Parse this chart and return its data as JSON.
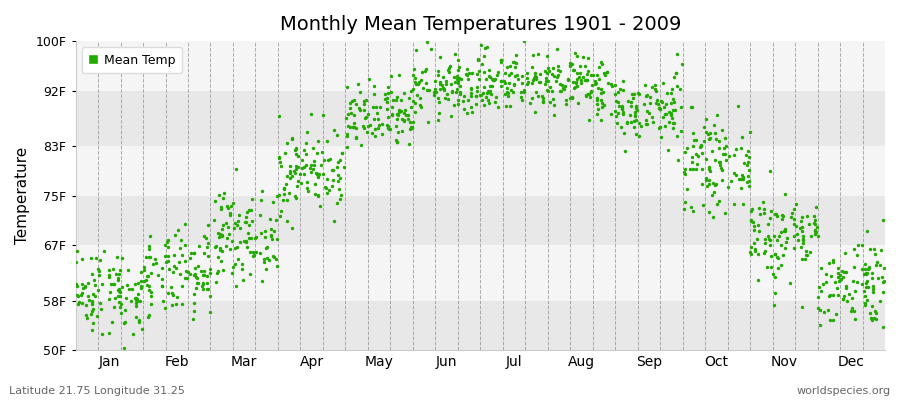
{
  "title": "Monthly Mean Temperatures 1901 - 2009",
  "ylabel": "Temperature",
  "subtitle_left": "Latitude 21.75 Longitude 31.25",
  "subtitle_right": "worldspecies.org",
  "legend_label": "Mean Temp",
  "dot_color": "#22aa00",
  "background_color": "#ffffff",
  "band_color_light": "#f5f5f5",
  "band_color_dark": "#e8e8e8",
  "yticks": [
    50,
    58,
    67,
    75,
    83,
    92,
    100
  ],
  "ytick_labels": [
    "50F",
    "58F",
    "67F",
    "75F",
    "83F",
    "92F",
    "100F"
  ],
  "ylim": [
    50,
    100
  ],
  "months": [
    "Jan",
    "Feb",
    "Mar",
    "Apr",
    "May",
    "Jun",
    "Jul",
    "Aug",
    "Sep",
    "Oct",
    "Nov",
    "Dec"
  ],
  "mean_temps_f": [
    59.5,
    62.0,
    68.5,
    79.0,
    87.5,
    92.5,
    93.5,
    93.0,
    89.0,
    80.0,
    68.5,
    61.0
  ],
  "std_temps_f": [
    3.5,
    3.5,
    3.5,
    3.5,
    2.8,
    2.5,
    2.5,
    2.5,
    2.8,
    3.5,
    3.8,
    3.8
  ],
  "n_years": 109,
  "random_seed": 42,
  "dot_size": 6
}
